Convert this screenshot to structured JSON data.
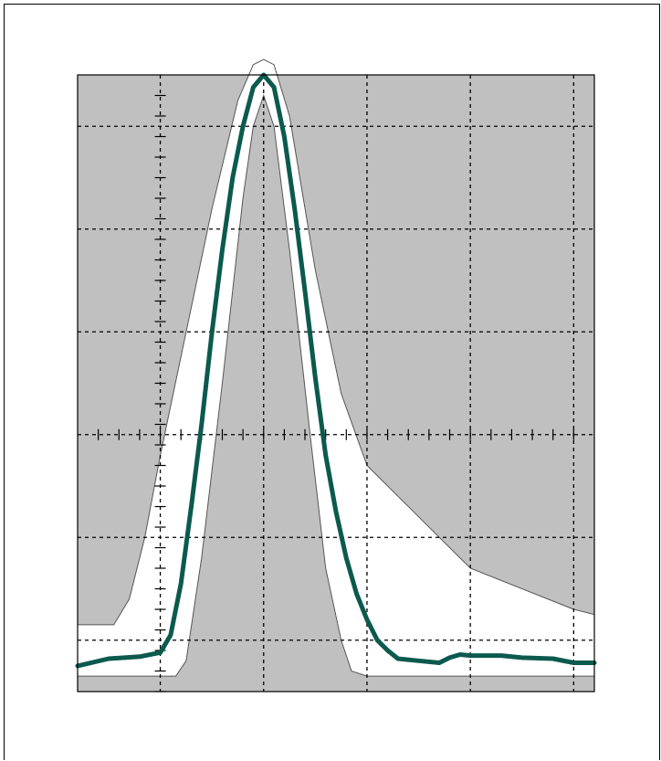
{
  "chart_data": {
    "type": "line",
    "title": "",
    "xlabel": "",
    "ylabel": "",
    "xlim": [
      -0.8,
      4.2
    ],
    "ylim": [
      -1.5,
      4.5
    ],
    "x_gridlines": [
      0,
      1,
      2,
      3,
      4
    ],
    "y_gridlines": [
      -1,
      0,
      1,
      2,
      3,
      4
    ],
    "center_axes": {
      "x": 0,
      "y": 1
    },
    "minor_tick_step": 0.2,
    "grid": true,
    "colors": {
      "plot_background": "#c0c0c0",
      "mask": "#ffffff",
      "mask_outline": "#555555",
      "trace": "#0b5a4d",
      "grid": "#000000"
    },
    "series": [
      {
        "x": [
          -0.8,
          -0.5,
          -0.2,
          0.0,
          0.1,
          0.2,
          0.3,
          0.4,
          0.5,
          0.6,
          0.7,
          0.8,
          0.9,
          1.0,
          1.1,
          1.2,
          1.3,
          1.4,
          1.5,
          1.6,
          1.7,
          1.8,
          1.9,
          2.0,
          2.1,
          2.2,
          2.3,
          2.5,
          2.7,
          2.8,
          2.9,
          3.0,
          3.3,
          3.5,
          3.8,
          4.0,
          4.2
        ],
        "y": [
          -1.25,
          -1.18,
          -1.16,
          -1.12,
          -0.95,
          -0.45,
          0.3,
          1.1,
          2.0,
          2.8,
          3.5,
          4.0,
          4.38,
          4.5,
          4.38,
          3.9,
          3.2,
          2.4,
          1.55,
          0.8,
          0.25,
          -0.2,
          -0.55,
          -0.8,
          -1.0,
          -1.1,
          -1.18,
          -1.2,
          -1.22,
          -1.17,
          -1.14,
          -1.15,
          -1.15,
          -1.17,
          -1.18,
          -1.22,
          -1.22
        ]
      }
    ],
    "mask_upper": {
      "x": [
        -0.8,
        -0.45,
        -0.3,
        -0.15,
        0.0,
        0.25,
        0.5,
        0.75,
        0.9,
        1.0,
        1.1,
        1.25,
        1.5,
        1.75,
        2.0,
        2.5,
        3.0,
        4.0,
        4.2
      ],
      "y": [
        -0.85,
        -0.85,
        -0.6,
        0.0,
        0.8,
        2.0,
        3.2,
        4.25,
        4.6,
        4.65,
        4.6,
        4.1,
        2.6,
        1.4,
        0.7,
        0.2,
        -0.3,
        -0.7,
        -0.75
      ]
    },
    "mask_lower": {
      "x": [
        -0.8,
        0.15,
        0.25,
        0.4,
        0.6,
        0.8,
        0.9,
        1.0,
        1.1,
        1.25,
        1.45,
        1.6,
        1.75,
        1.85,
        2.0,
        4.2
      ],
      "y": [
        -1.35,
        -1.35,
        -1.2,
        -0.2,
        1.5,
        3.3,
        4.0,
        4.3,
        4.0,
        2.8,
        1.0,
        -0.3,
        -1.0,
        -1.3,
        -1.35,
        -1.35
      ]
    }
  }
}
